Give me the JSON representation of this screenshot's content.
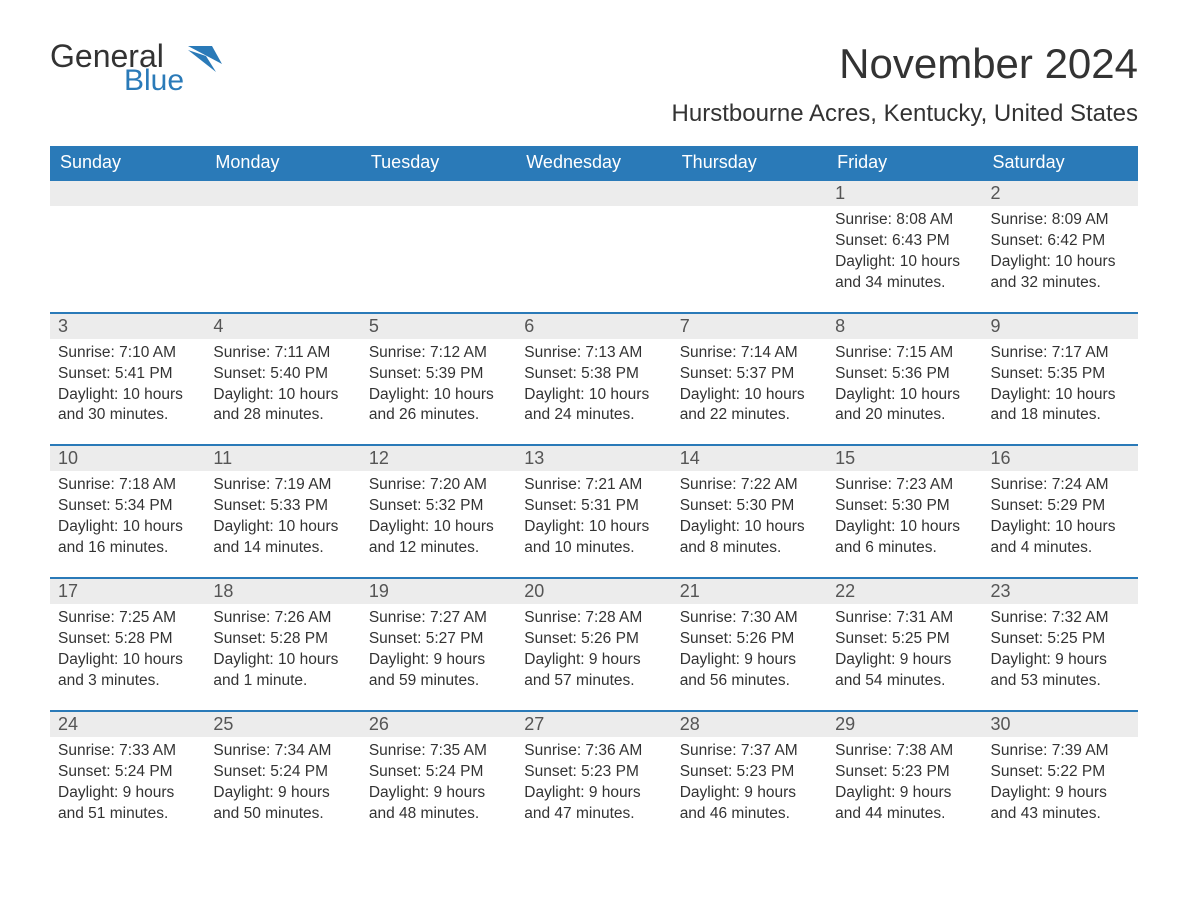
{
  "brand": {
    "word1": "General",
    "word2": "Blue",
    "accent_color": "#2a7ab8",
    "text_color": "#333333"
  },
  "title": "November 2024",
  "location": "Hurstbourne Acres, Kentucky, United States",
  "colors": {
    "header_bg": "#2a7ab8",
    "header_text": "#ffffff",
    "daynum_bg": "#ececec",
    "row_border": "#2a7ab8",
    "body_text": "#333333",
    "background": "#ffffff"
  },
  "typography": {
    "title_fontsize": 42,
    "location_fontsize": 24,
    "header_fontsize": 18,
    "daynum_fontsize": 18,
    "cell_fontsize": 15.5
  },
  "calendar": {
    "type": "table",
    "columns": [
      "Sunday",
      "Monday",
      "Tuesday",
      "Wednesday",
      "Thursday",
      "Friday",
      "Saturday"
    ],
    "weeks": [
      [
        null,
        null,
        null,
        null,
        null,
        {
          "day": "1",
          "sunrise": "Sunrise: 8:08 AM",
          "sunset": "Sunset: 6:43 PM",
          "daylight": "Daylight: 10 hours and 34 minutes."
        },
        {
          "day": "2",
          "sunrise": "Sunrise: 8:09 AM",
          "sunset": "Sunset: 6:42 PM",
          "daylight": "Daylight: 10 hours and 32 minutes."
        }
      ],
      [
        {
          "day": "3",
          "sunrise": "Sunrise: 7:10 AM",
          "sunset": "Sunset: 5:41 PM",
          "daylight": "Daylight: 10 hours and 30 minutes."
        },
        {
          "day": "4",
          "sunrise": "Sunrise: 7:11 AM",
          "sunset": "Sunset: 5:40 PM",
          "daylight": "Daylight: 10 hours and 28 minutes."
        },
        {
          "day": "5",
          "sunrise": "Sunrise: 7:12 AM",
          "sunset": "Sunset: 5:39 PM",
          "daylight": "Daylight: 10 hours and 26 minutes."
        },
        {
          "day": "6",
          "sunrise": "Sunrise: 7:13 AM",
          "sunset": "Sunset: 5:38 PM",
          "daylight": "Daylight: 10 hours and 24 minutes."
        },
        {
          "day": "7",
          "sunrise": "Sunrise: 7:14 AM",
          "sunset": "Sunset: 5:37 PM",
          "daylight": "Daylight: 10 hours and 22 minutes."
        },
        {
          "day": "8",
          "sunrise": "Sunrise: 7:15 AM",
          "sunset": "Sunset: 5:36 PM",
          "daylight": "Daylight: 10 hours and 20 minutes."
        },
        {
          "day": "9",
          "sunrise": "Sunrise: 7:17 AM",
          "sunset": "Sunset: 5:35 PM",
          "daylight": "Daylight: 10 hours and 18 minutes."
        }
      ],
      [
        {
          "day": "10",
          "sunrise": "Sunrise: 7:18 AM",
          "sunset": "Sunset: 5:34 PM",
          "daylight": "Daylight: 10 hours and 16 minutes."
        },
        {
          "day": "11",
          "sunrise": "Sunrise: 7:19 AM",
          "sunset": "Sunset: 5:33 PM",
          "daylight": "Daylight: 10 hours and 14 minutes."
        },
        {
          "day": "12",
          "sunrise": "Sunrise: 7:20 AM",
          "sunset": "Sunset: 5:32 PM",
          "daylight": "Daylight: 10 hours and 12 minutes."
        },
        {
          "day": "13",
          "sunrise": "Sunrise: 7:21 AM",
          "sunset": "Sunset: 5:31 PM",
          "daylight": "Daylight: 10 hours and 10 minutes."
        },
        {
          "day": "14",
          "sunrise": "Sunrise: 7:22 AM",
          "sunset": "Sunset: 5:30 PM",
          "daylight": "Daylight: 10 hours and 8 minutes."
        },
        {
          "day": "15",
          "sunrise": "Sunrise: 7:23 AM",
          "sunset": "Sunset: 5:30 PM",
          "daylight": "Daylight: 10 hours and 6 minutes."
        },
        {
          "day": "16",
          "sunrise": "Sunrise: 7:24 AM",
          "sunset": "Sunset: 5:29 PM",
          "daylight": "Daylight: 10 hours and 4 minutes."
        }
      ],
      [
        {
          "day": "17",
          "sunrise": "Sunrise: 7:25 AM",
          "sunset": "Sunset: 5:28 PM",
          "daylight": "Daylight: 10 hours and 3 minutes."
        },
        {
          "day": "18",
          "sunrise": "Sunrise: 7:26 AM",
          "sunset": "Sunset: 5:28 PM",
          "daylight": "Daylight: 10 hours and 1 minute."
        },
        {
          "day": "19",
          "sunrise": "Sunrise: 7:27 AM",
          "sunset": "Sunset: 5:27 PM",
          "daylight": "Daylight: 9 hours and 59 minutes."
        },
        {
          "day": "20",
          "sunrise": "Sunrise: 7:28 AM",
          "sunset": "Sunset: 5:26 PM",
          "daylight": "Daylight: 9 hours and 57 minutes."
        },
        {
          "day": "21",
          "sunrise": "Sunrise: 7:30 AM",
          "sunset": "Sunset: 5:26 PM",
          "daylight": "Daylight: 9 hours and 56 minutes."
        },
        {
          "day": "22",
          "sunrise": "Sunrise: 7:31 AM",
          "sunset": "Sunset: 5:25 PM",
          "daylight": "Daylight: 9 hours and 54 minutes."
        },
        {
          "day": "23",
          "sunrise": "Sunrise: 7:32 AM",
          "sunset": "Sunset: 5:25 PM",
          "daylight": "Daylight: 9 hours and 53 minutes."
        }
      ],
      [
        {
          "day": "24",
          "sunrise": "Sunrise: 7:33 AM",
          "sunset": "Sunset: 5:24 PM",
          "daylight": "Daylight: 9 hours and 51 minutes."
        },
        {
          "day": "25",
          "sunrise": "Sunrise: 7:34 AM",
          "sunset": "Sunset: 5:24 PM",
          "daylight": "Daylight: 9 hours and 50 minutes."
        },
        {
          "day": "26",
          "sunrise": "Sunrise: 7:35 AM",
          "sunset": "Sunset: 5:24 PM",
          "daylight": "Daylight: 9 hours and 48 minutes."
        },
        {
          "day": "27",
          "sunrise": "Sunrise: 7:36 AM",
          "sunset": "Sunset: 5:23 PM",
          "daylight": "Daylight: 9 hours and 47 minutes."
        },
        {
          "day": "28",
          "sunrise": "Sunrise: 7:37 AM",
          "sunset": "Sunset: 5:23 PM",
          "daylight": "Daylight: 9 hours and 46 minutes."
        },
        {
          "day": "29",
          "sunrise": "Sunrise: 7:38 AM",
          "sunset": "Sunset: 5:23 PM",
          "daylight": "Daylight: 9 hours and 44 minutes."
        },
        {
          "day": "30",
          "sunrise": "Sunrise: 7:39 AM",
          "sunset": "Sunset: 5:22 PM",
          "daylight": "Daylight: 9 hours and 43 minutes."
        }
      ]
    ]
  }
}
